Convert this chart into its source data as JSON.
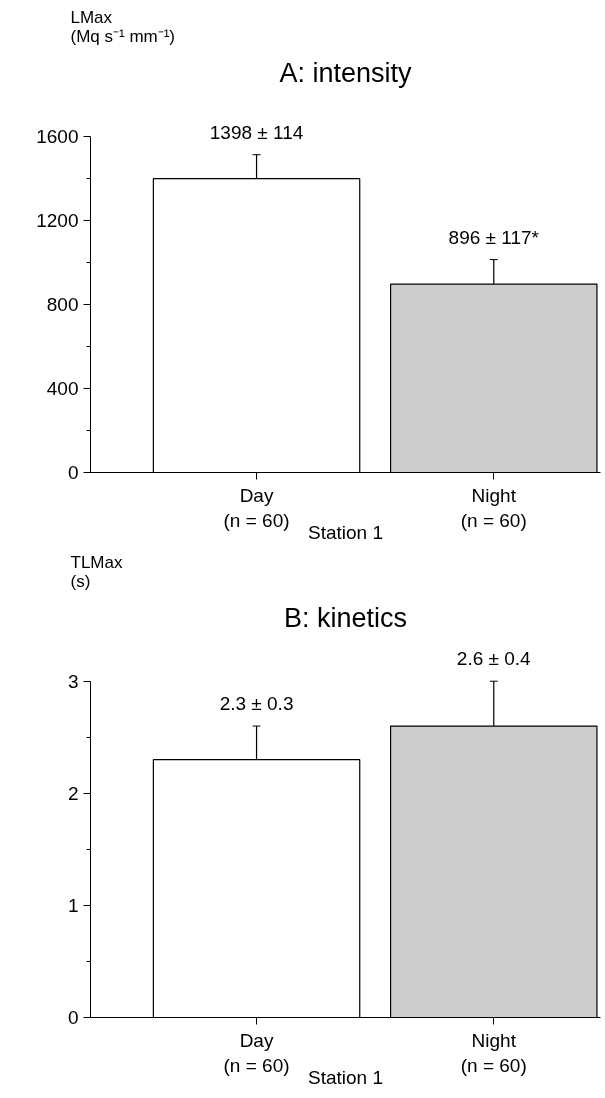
{
  "chart_data": [
    {
      "type": "bar",
      "title": "A: intensity",
      "ylabel": "LMax\n(Mq s⁻¹ mm⁻¹)",
      "xlabel": "Station 1",
      "categories": [
        "Day\n(n = 60)",
        "Night\n(n = 60)"
      ],
      "values": [
        1398,
        896
      ],
      "errors": [
        114,
        117
      ],
      "value_labels": [
        "1398 ± 114",
        "896 ± 117*"
      ],
      "colors": [
        "#ffffff",
        "#cccccc"
      ],
      "ylim": [
        0,
        1600
      ],
      "yticks": [
        0,
        400,
        800,
        1200,
        1600
      ],
      "grid": false
    },
    {
      "type": "bar",
      "title": "B: kinetics",
      "ylabel": "TLMax\n(s)",
      "xlabel": "Station 1",
      "categories": [
        "Day\n(n = 60)",
        "Night\n(n = 60)"
      ],
      "values": [
        2.3,
        2.6
      ],
      "errors": [
        0.3,
        0.4
      ],
      "value_labels": [
        "2.3 ± 0.3",
        "2.6 ± 0.4"
      ],
      "colors": [
        "#ffffff",
        "#cccccc"
      ],
      "ylim": [
        0,
        3
      ],
      "yticks": [
        0,
        1,
        2,
        3
      ],
      "grid": false
    }
  ]
}
